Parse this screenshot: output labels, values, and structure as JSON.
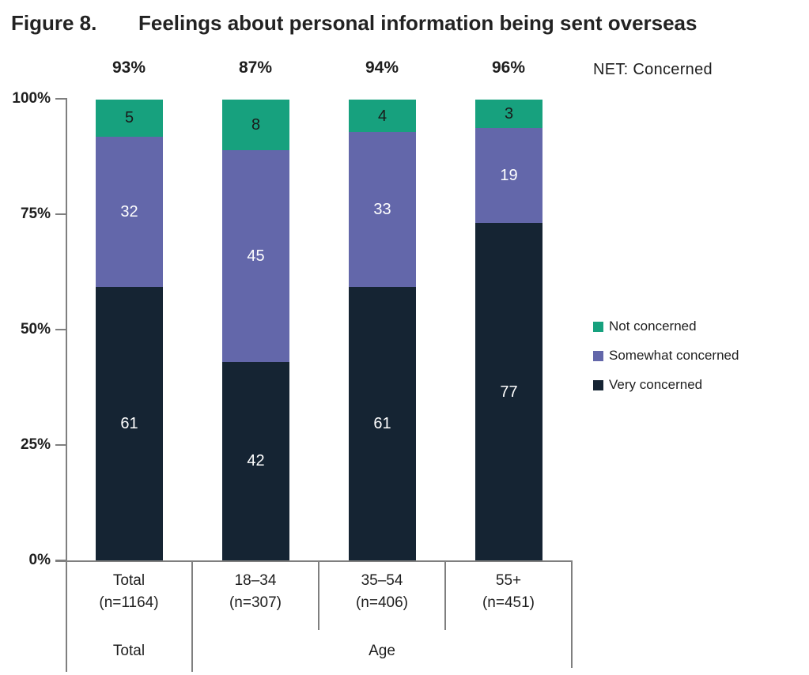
{
  "figure": {
    "label": "Figure 8.",
    "title": "Feelings about personal information being sent overseas"
  },
  "net_row": {
    "caption": "NET: Concerned",
    "values": [
      "93%",
      "87%",
      "94%",
      "96%"
    ]
  },
  "y_axis": {
    "ticks": [
      "100%",
      "75%",
      "50%",
      "25%",
      "0%"
    ]
  },
  "x_axis": {
    "categories": [
      {
        "label": "Total",
        "n": "(n=1164)"
      },
      {
        "label": "18–34",
        "n": "(n=307)"
      },
      {
        "label": "35–54",
        "n": "(n=406)"
      },
      {
        "label": "55+",
        "n": "(n=451)"
      }
    ],
    "groups": [
      {
        "label": "Total"
      },
      {
        "label": "Age"
      }
    ]
  },
  "legend": [
    {
      "label": "Not concerned",
      "color": "#17A17E"
    },
    {
      "label": "Somewhat concerned",
      "color": "#6367AA"
    },
    {
      "label": "Very concerned",
      "color": "#152433"
    }
  ],
  "colors": {
    "very_concerned": "#152433",
    "somewhat_concerned": "#6367AA",
    "not_concerned": "#17A17E",
    "axis_line": "#7F7F7F",
    "text": "#1E1E1E"
  },
  "chart_data": {
    "type": "bar",
    "subtype": "100%-stacked-column",
    "title": "Figure 8. Feelings about personal information being sent overseas",
    "categories": [
      "Total (n=1164)",
      "18–34 (n=307)",
      "35–54 (n=406)",
      "55+ (n=451)"
    ],
    "series": [
      {
        "name": "Very concerned",
        "color": "#152433",
        "label_color": "#FFFFFF",
        "values": [
          61,
          42,
          61,
          77
        ]
      },
      {
        "name": "Somewhat concerned",
        "color": "#6367AA",
        "label_color": "#FFFFFF",
        "values": [
          32,
          45,
          33,
          19
        ]
      },
      {
        "name": "Not concerned",
        "color": "#17A17E",
        "label_color": "#1A1A1A",
        "values": [
          5,
          8,
          4,
          3
        ]
      }
    ],
    "net_concerned": {
      "label": "NET: Concerned",
      "values": [
        93,
        87,
        94,
        96
      ]
    },
    "xlabel_groups": [
      {
        "label": "Total",
        "categories": [
          "Total (n=1164)"
        ]
      },
      {
        "label": "Age",
        "categories": [
          "18–34 (n=307)",
          "35–54 (n=406)",
          "55+ (n=451)"
        ]
      }
    ],
    "ylabel": "",
    "ylim": [
      0,
      100
    ],
    "y_ticks": [
      "0%",
      "25%",
      "50%",
      "75%",
      "100%"
    ],
    "grid": false,
    "legend_position": "right"
  }
}
